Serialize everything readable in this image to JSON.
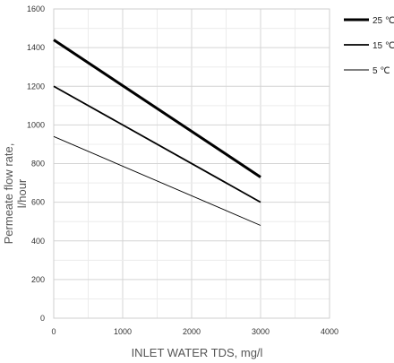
{
  "chart_data": {
    "type": "line",
    "xlabel": "INLET WATER TDS, mg/l",
    "ylabel": [
      "Permeate flow rate,",
      "l/hour"
    ],
    "xlim": [
      0,
      4000
    ],
    "ylim": [
      0,
      1600
    ],
    "xticks": [
      0,
      1000,
      2000,
      3000,
      4000
    ],
    "yticks": [
      0,
      200,
      400,
      600,
      800,
      1000,
      1200,
      1400,
      1600
    ],
    "grid": true,
    "legend_position": "right",
    "series": [
      {
        "name": "25 ℃",
        "x": [
          0,
          3000
        ],
        "y": [
          1440,
          730
        ],
        "color": "#000000",
        "line_width": "heavy"
      },
      {
        "name": "15 ℃",
        "x": [
          0,
          3000
        ],
        "y": [
          1200,
          600
        ],
        "color": "#000000",
        "line_width": "medium"
      },
      {
        "name": "5 ℃",
        "x": [
          0,
          3000
        ],
        "y": [
          940,
          480
        ],
        "color": "#000000",
        "line_width": "thin"
      }
    ]
  }
}
